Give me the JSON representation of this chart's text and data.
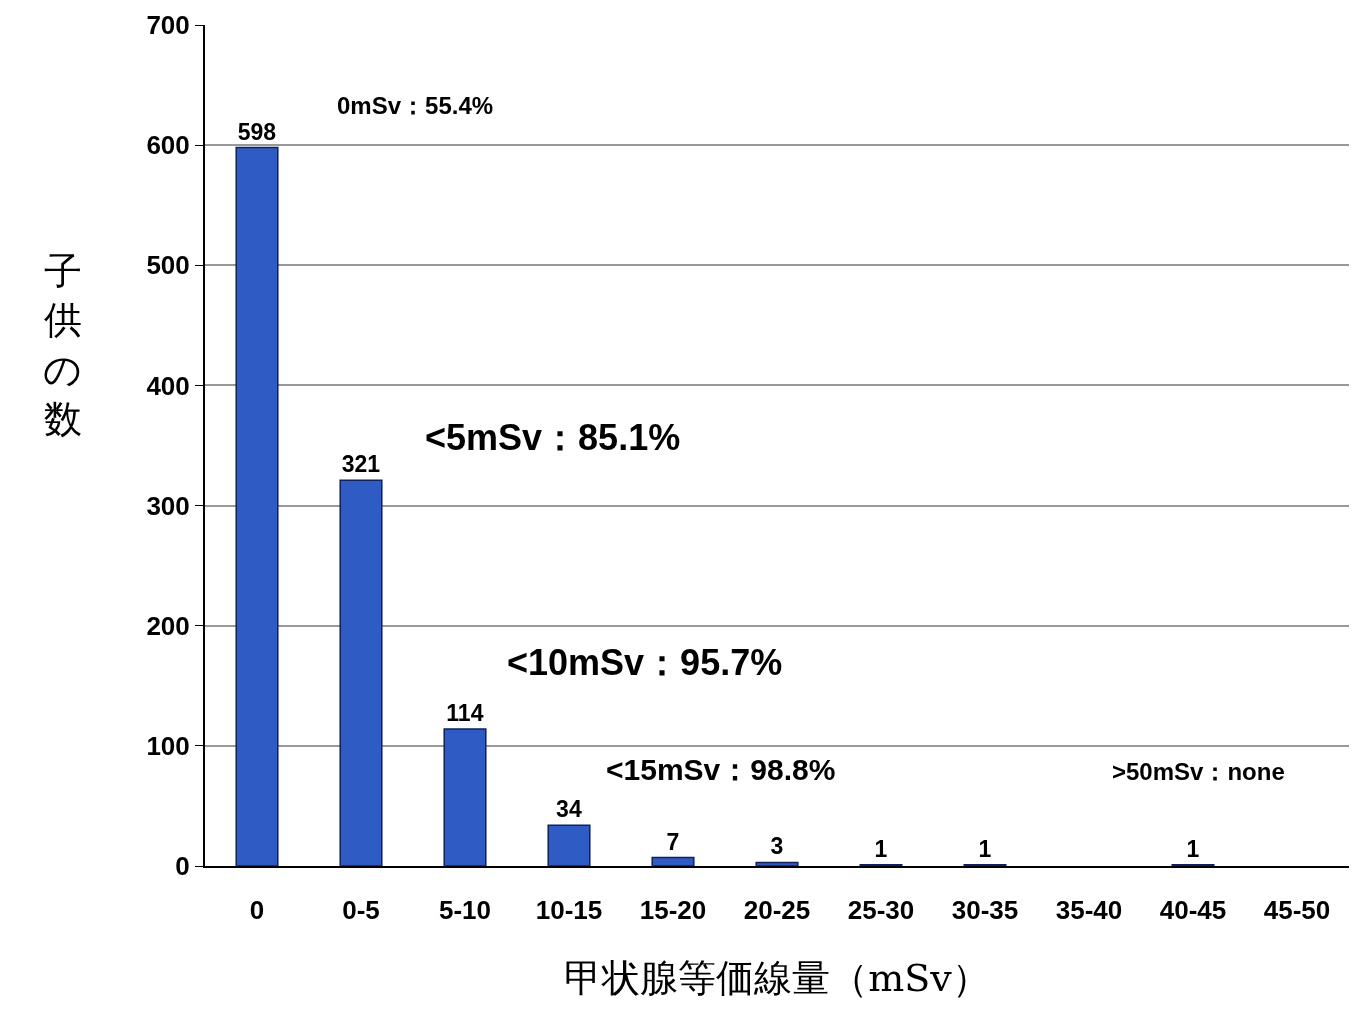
{
  "chart_data": {
    "type": "bar",
    "xlabel": "甲状腺等価線量（mSv）",
    "ylabel": "子供の数",
    "categories": [
      "0",
      "0-5",
      "5-10",
      "10-15",
      "15-20",
      "20-25",
      "25-30",
      "30-35",
      "35-40",
      "40-45",
      "45-50"
    ],
    "values": [
      598,
      321,
      114,
      34,
      7,
      3,
      1,
      1,
      0,
      1,
      0
    ],
    "value_labels": [
      "598",
      "321",
      "114",
      "34",
      "7",
      "3",
      "1",
      "1",
      null,
      "1",
      null
    ],
    "color": "#2f5cc4",
    "ylim": [
      0,
      700
    ],
    "yticks": [
      0,
      100,
      200,
      300,
      400,
      500,
      600,
      700
    ],
    "grid": "y",
    "legend": false,
    "annotations": [
      "0mSv：55.4%",
      "<5mSv：85.1%",
      "<10mSv：95.7%",
      "<15mSv：98.8%",
      ">50mSv：none"
    ]
  }
}
